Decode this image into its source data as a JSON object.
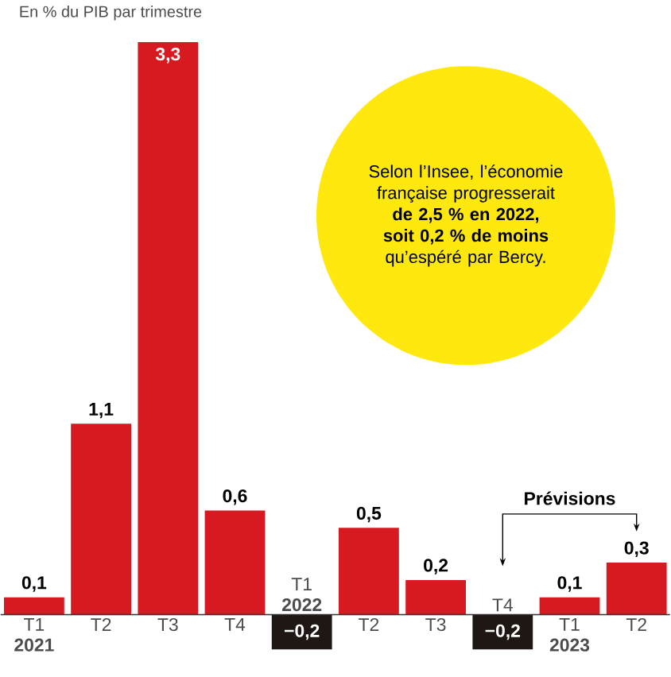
{
  "chart_data": {
    "type": "bar",
    "subtitle": "En % du PIB par trimestre",
    "categories": [
      "T1 **2021**",
      "T2",
      "T3",
      "T4",
      "T1 **2022**",
      "T2",
      "T3",
      "T4",
      "T1 **2023**",
      "T2"
    ],
    "values": [
      0.1,
      1.1,
      3.3,
      0.6,
      -0.2,
      0.5,
      0.2,
      -0.2,
      0.1,
      0.3
    ],
    "value_labels": [
      "0,1",
      "1,1",
      "3,3",
      "0,6",
      "−0,2",
      "0,5",
      "0,2",
      "−0,2",
      "0,1",
      "0,3"
    ],
    "colors": [
      "#d71920",
      "#d71920",
      "#d71920",
      "#d71920",
      "#1e1714",
      "#d71920",
      "#d71920",
      "#1e1714",
      "#d71920",
      "#d71920"
    ],
    "relative": false,
    "annotations": [
      "Selon l’Insee, l’économie française progresserait **de 2,5 % en 2022, soit 0,2 % de moins** qu’espéré par Bercy.",
      "Prévisions"
    ]
  }
}
